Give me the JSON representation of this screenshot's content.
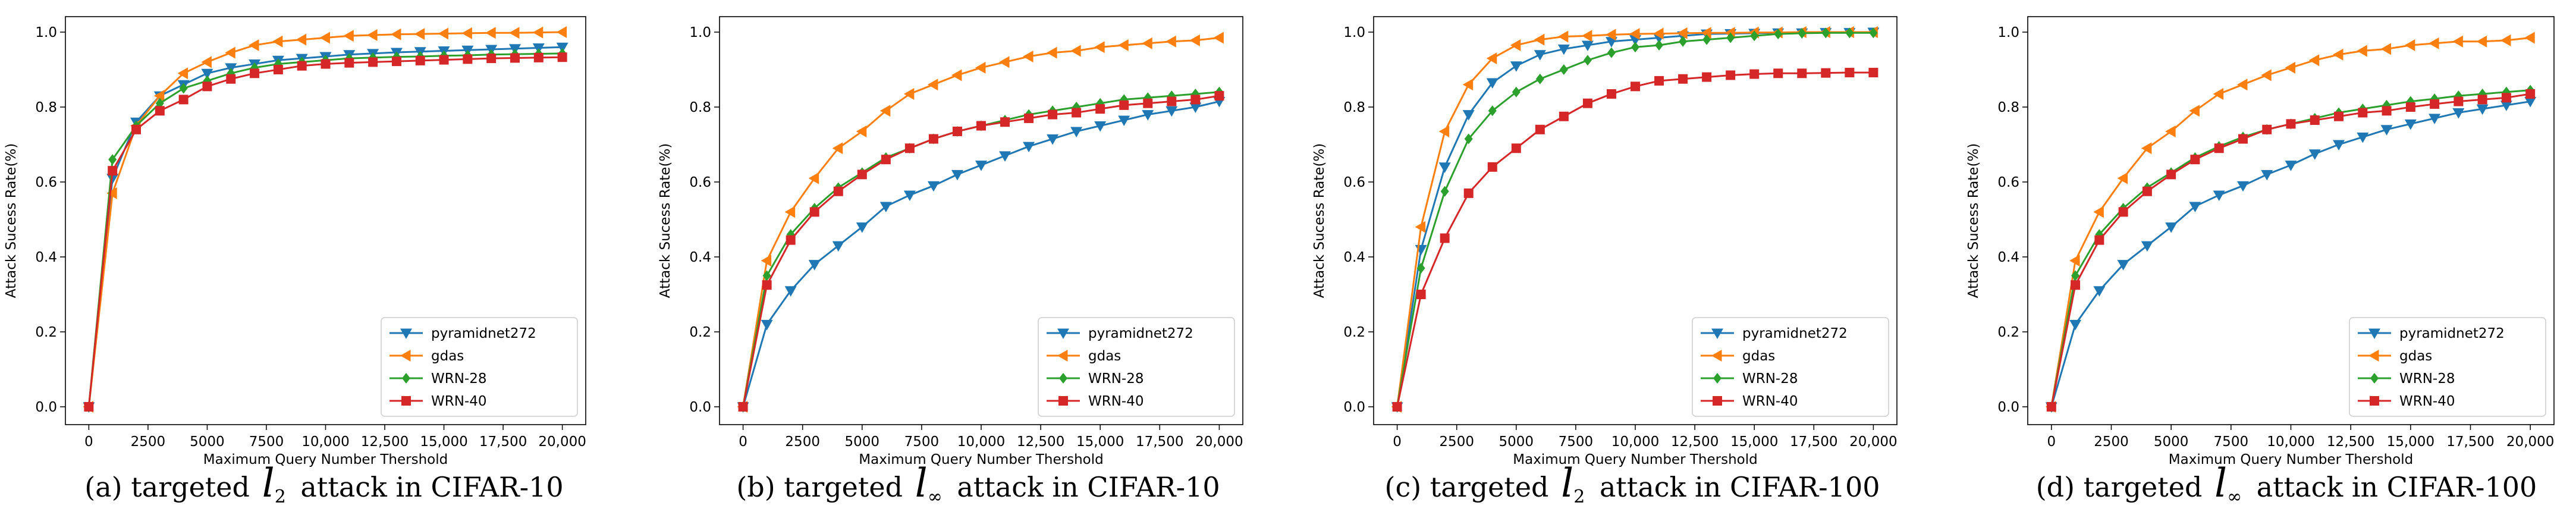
{
  "colors": {
    "pyramidnet272": "#1f77b4",
    "gdas": "#ff7f0e",
    "WRN-28": "#2ca02c",
    "WRN-40": "#d62728"
  },
  "chart_data": [
    {
      "type": "line",
      "caption_prefix": "(a)  targeted",
      "caption_norm_base": "l",
      "caption_norm_sub": "2",
      "caption_suffix": "attack  in  CIFAR-10",
      "xlabel": "Maximum Query Number Thershold",
      "ylabel": "Attack Sucess Rate(%)",
      "xlim": [
        0,
        20000
      ],
      "ylim": [
        0,
        1.0
      ],
      "xticks": [
        0,
        2500,
        5000,
        7500,
        10000,
        12500,
        15000,
        17500,
        20000
      ],
      "xtick_labels": [
        "0",
        "2500",
        "5000",
        "7500",
        "10,000",
        "12,500",
        "15,000",
        "17,500",
        "20,000"
      ],
      "yticks": [
        0,
        0.2,
        0.4,
        0.6,
        0.8,
        1.0
      ],
      "ytick_labels": [
        "0.0",
        "0.2",
        "0.4",
        "0.6",
        "0.8",
        "1.0"
      ],
      "legend_position": "lower-right",
      "x": [
        0,
        1000,
        2000,
        3000,
        4000,
        5000,
        6000,
        7000,
        8000,
        9000,
        10000,
        11000,
        12000,
        13000,
        14000,
        15000,
        16000,
        17000,
        18000,
        19000,
        20000
      ],
      "series": [
        {
          "name": "pyramidnet272",
          "marker": "tri-down",
          "values": [
            0,
            0.61,
            0.76,
            0.83,
            0.86,
            0.89,
            0.905,
            0.915,
            0.925,
            0.93,
            0.935,
            0.94,
            0.943,
            0.946,
            0.948,
            0.95,
            0.952,
            0.954,
            0.956,
            0.958,
            0.96
          ]
        },
        {
          "name": "gdas",
          "marker": "tri-left",
          "values": [
            0,
            0.57,
            0.75,
            0.83,
            0.89,
            0.92,
            0.945,
            0.965,
            0.975,
            0.98,
            0.985,
            0.99,
            0.992,
            0.994,
            0.995,
            0.996,
            0.997,
            0.998,
            0.998,
            0.999,
            1.0
          ]
        },
        {
          "name": "WRN-28",
          "marker": "diamond",
          "values": [
            0,
            0.66,
            0.75,
            0.81,
            0.85,
            0.87,
            0.89,
            0.905,
            0.915,
            0.92,
            0.925,
            0.93,
            0.932,
            0.934,
            0.935,
            0.937,
            0.938,
            0.94,
            0.941,
            0.942,
            0.943
          ]
        },
        {
          "name": "WRN-40",
          "marker": "square",
          "values": [
            0,
            0.63,
            0.74,
            0.79,
            0.82,
            0.855,
            0.875,
            0.89,
            0.9,
            0.91,
            0.915,
            0.918,
            0.92,
            0.922,
            0.924,
            0.926,
            0.928,
            0.93,
            0.931,
            0.932,
            0.933
          ]
        }
      ]
    },
    {
      "type": "line",
      "caption_prefix": "(b)  targeted",
      "caption_norm_base": "l",
      "caption_norm_sub": "∞",
      "caption_suffix": "attack  in  CIFAR-10",
      "xlabel": "Maximum Query Number Thershold",
      "ylabel": "Attack Sucess Rate(%)",
      "xlim": [
        0,
        20000
      ],
      "ylim": [
        0,
        1.0
      ],
      "xticks": [
        0,
        2500,
        5000,
        7500,
        10000,
        12500,
        15000,
        17500,
        20000
      ],
      "xtick_labels": [
        "0",
        "2500",
        "5000",
        "7500",
        "10,000",
        "12,500",
        "15,000",
        "17,500",
        "20,000"
      ],
      "yticks": [
        0,
        0.2,
        0.4,
        0.6,
        0.8,
        1.0
      ],
      "ytick_labels": [
        "0.0",
        "0.2",
        "0.4",
        "0.6",
        "0.8",
        "1.0"
      ],
      "legend_position": "lower-right",
      "x": [
        0,
        1000,
        2000,
        3000,
        4000,
        5000,
        6000,
        7000,
        8000,
        9000,
        10000,
        11000,
        12000,
        13000,
        14000,
        15000,
        16000,
        17000,
        18000,
        19000,
        20000
      ],
      "series": [
        {
          "name": "pyramidnet272",
          "marker": "tri-down",
          "values": [
            0,
            0.22,
            0.31,
            0.38,
            0.43,
            0.48,
            0.535,
            0.565,
            0.59,
            0.62,
            0.645,
            0.67,
            0.695,
            0.715,
            0.735,
            0.75,
            0.765,
            0.78,
            0.79,
            0.8,
            0.815
          ]
        },
        {
          "name": "gdas",
          "marker": "tri-left",
          "values": [
            0,
            0.39,
            0.52,
            0.61,
            0.69,
            0.735,
            0.79,
            0.835,
            0.86,
            0.885,
            0.905,
            0.92,
            0.935,
            0.945,
            0.95,
            0.96,
            0.965,
            0.97,
            0.975,
            0.978,
            0.985
          ]
        },
        {
          "name": "WRN-28",
          "marker": "diamond",
          "values": [
            0,
            0.35,
            0.46,
            0.53,
            0.585,
            0.625,
            0.665,
            0.69,
            0.715,
            0.735,
            0.75,
            0.765,
            0.78,
            0.79,
            0.8,
            0.81,
            0.82,
            0.825,
            0.83,
            0.835,
            0.84
          ]
        },
        {
          "name": "WRN-40",
          "marker": "square",
          "values": [
            0,
            0.325,
            0.445,
            0.52,
            0.575,
            0.62,
            0.66,
            0.69,
            0.715,
            0.735,
            0.75,
            0.76,
            0.77,
            0.78,
            0.785,
            0.795,
            0.805,
            0.81,
            0.815,
            0.82,
            0.83
          ]
        }
      ]
    },
    {
      "type": "line",
      "caption_prefix": "(c)  targeted",
      "caption_norm_base": "l",
      "caption_norm_sub": "2",
      "caption_suffix": "attack  in  CIFAR-100",
      "xlabel": "Maximum Query Number Thershold",
      "ylabel": "Attack Sucess Rate(%)",
      "xlim": [
        0,
        20000
      ],
      "ylim": [
        0,
        1.0
      ],
      "xticks": [
        0,
        2500,
        5000,
        7500,
        10000,
        12500,
        15000,
        17500,
        20000
      ],
      "xtick_labels": [
        "0",
        "2500",
        "5000",
        "7500",
        "10,000",
        "12,500",
        "15,000",
        "17,500",
        "20,000"
      ],
      "yticks": [
        0,
        0.2,
        0.4,
        0.6,
        0.8,
        1.0
      ],
      "ytick_labels": [
        "0.0",
        "0.2",
        "0.4",
        "0.6",
        "0.8",
        "1.0"
      ],
      "legend_position": "lower-right",
      "x": [
        0,
        1000,
        2000,
        3000,
        4000,
        5000,
        6000,
        7000,
        8000,
        9000,
        10000,
        11000,
        12000,
        13000,
        14000,
        15000,
        16000,
        17000,
        18000,
        19000,
        20000
      ],
      "series": [
        {
          "name": "pyramidnet272",
          "marker": "tri-down",
          "values": [
            0,
            0.42,
            0.64,
            0.78,
            0.865,
            0.91,
            0.94,
            0.955,
            0.965,
            0.975,
            0.98,
            0.985,
            0.99,
            0.995,
            0.996,
            0.997,
            0.998,
            0.998,
            0.999,
            0.999,
            1.0
          ]
        },
        {
          "name": "gdas",
          "marker": "tri-left",
          "values": [
            0,
            0.48,
            0.735,
            0.86,
            0.93,
            0.965,
            0.98,
            0.988,
            0.99,
            0.993,
            0.995,
            0.996,
            0.997,
            0.998,
            0.998,
            0.999,
            0.999,
            1.0,
            1.0,
            1.0,
            1.0
          ]
        },
        {
          "name": "WRN-28",
          "marker": "diamond",
          "values": [
            0,
            0.37,
            0.575,
            0.715,
            0.79,
            0.84,
            0.875,
            0.9,
            0.925,
            0.945,
            0.96,
            0.965,
            0.975,
            0.98,
            0.985,
            0.99,
            0.995,
            0.997,
            0.998,
            0.998,
            0.998
          ]
        },
        {
          "name": "WRN-40",
          "marker": "square",
          "values": [
            0,
            0.3,
            0.45,
            0.57,
            0.64,
            0.69,
            0.74,
            0.775,
            0.81,
            0.835,
            0.855,
            0.87,
            0.875,
            0.88,
            0.885,
            0.888,
            0.89,
            0.89,
            0.891,
            0.892,
            0.892
          ]
        }
      ]
    },
    {
      "type": "line",
      "caption_prefix": "(d)  targeted",
      "caption_norm_base": "l",
      "caption_norm_sub": "∞",
      "caption_suffix": "attack  in  CIFAR-100",
      "xlabel": "Maximum Query Number Thershold",
      "ylabel": "Attack Sucess Rate(%)",
      "xlim": [
        0,
        20000
      ],
      "ylim": [
        0,
        1.0
      ],
      "xticks": [
        0,
        2500,
        5000,
        7500,
        10000,
        12500,
        15000,
        17500,
        20000
      ],
      "xtick_labels": [
        "0",
        "2500",
        "5000",
        "7500",
        "10,000",
        "12,500",
        "15,000",
        "17,500",
        "20,000"
      ],
      "yticks": [
        0,
        0.2,
        0.4,
        0.6,
        0.8,
        1.0
      ],
      "ytick_labels": [
        "0.0",
        "0.2",
        "0.4",
        "0.6",
        "0.8",
        "1.0"
      ],
      "legend_position": "lower-right",
      "x": [
        0,
        1000,
        2000,
        3000,
        4000,
        5000,
        6000,
        7000,
        8000,
        9000,
        10000,
        11000,
        12000,
        13000,
        14000,
        15000,
        16000,
        17000,
        18000,
        19000,
        20000
      ],
      "series": [
        {
          "name": "pyramidnet272",
          "marker": "tri-down",
          "values": [
            0,
            0.22,
            0.31,
            0.38,
            0.43,
            0.48,
            0.535,
            0.565,
            0.59,
            0.62,
            0.645,
            0.675,
            0.7,
            0.72,
            0.74,
            0.755,
            0.77,
            0.785,
            0.795,
            0.805,
            0.815
          ]
        },
        {
          "name": "gdas",
          "marker": "tri-left",
          "values": [
            0,
            0.39,
            0.52,
            0.61,
            0.69,
            0.735,
            0.79,
            0.835,
            0.86,
            0.885,
            0.905,
            0.925,
            0.94,
            0.95,
            0.955,
            0.965,
            0.97,
            0.975,
            0.975,
            0.978,
            0.985
          ]
        },
        {
          "name": "WRN-28",
          "marker": "diamond",
          "values": [
            0,
            0.35,
            0.46,
            0.53,
            0.585,
            0.625,
            0.665,
            0.695,
            0.72,
            0.74,
            0.755,
            0.77,
            0.785,
            0.795,
            0.805,
            0.815,
            0.822,
            0.83,
            0.835,
            0.84,
            0.845
          ]
        },
        {
          "name": "WRN-40",
          "marker": "square",
          "values": [
            0,
            0.325,
            0.445,
            0.52,
            0.575,
            0.62,
            0.66,
            0.69,
            0.715,
            0.74,
            0.755,
            0.765,
            0.775,
            0.785,
            0.79,
            0.8,
            0.808,
            0.815,
            0.82,
            0.825,
            0.835
          ]
        }
      ]
    }
  ]
}
